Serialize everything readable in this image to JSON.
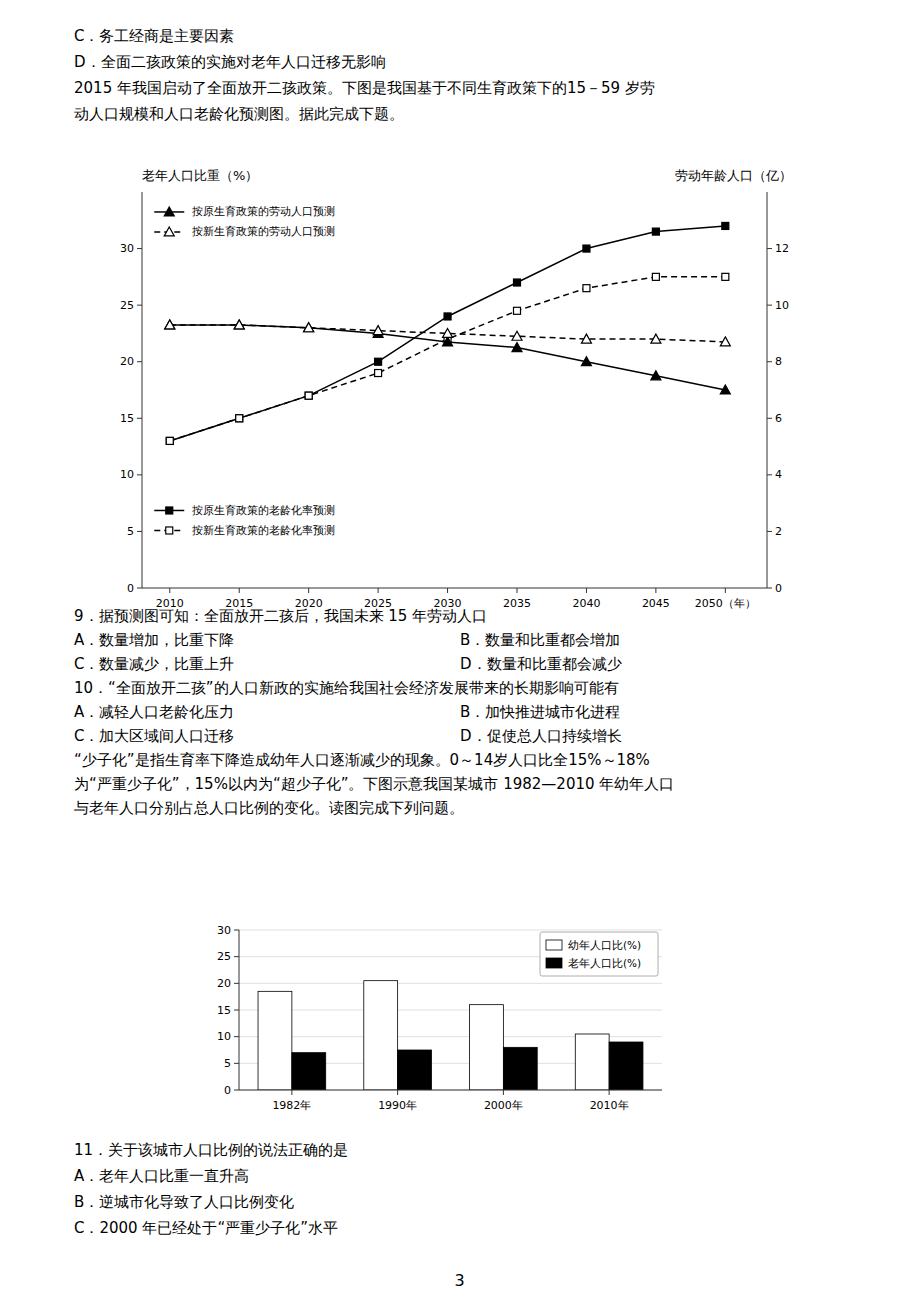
{
  "page_text": [
    [
      [
        "C．务工经商是主要因素"
      ],
      [
        "D．全面二孩政策的实施对老年人口迁移无影响"
      ],
      [
        "2015 年我国启动了全面放开二孩政策。下图是我国基于不同生育政策下的15－59 岁劳"
      ],
      [
        "动人口规模和人口老龄化预测图。据此完成下题。"
      ]
    ],
    [
      [
        "9．据预测图可知：全面放开二孩后，我国未来 15 年劳动人口"
      ],
      [
        "A．数量增加，比重下降",
        "B．数量和比重都会增加"
      ],
      [
        "C．数量减少，比重上升",
        "D．数量和比重都会减少"
      ],
      [
        "10．“全面放开二孩”的人口新政的实施给我国社会经济发展带来的长期影响可能有"
      ],
      [
        "A．减轻人口老龄化压力",
        "B．加快推进城市化进程"
      ],
      [
        "C．加大区域间人口迁移",
        "D．促使总人口持续增长"
      ],
      [
        "“少子化”是指生育率下降造成幼年人口逐渐减少的现象。0～14岁人口比全15%～18%"
      ],
      [
        "为“严重少子化”，15%以内为“超少子化”。下图示意我国某城市 1982—2010 年幼年人口"
      ],
      [
        "与老年人口分别占总人口比例的变化。读图完成下列问题。"
      ]
    ],
    [
      [
        "11．关于该城市人口比例的说法正确的是"
      ],
      [
        "A．老年人口比重一直升高"
      ],
      [
        "B．逆城市化导致了人口比例变化"
      ],
      [
        "C．2000 年已经处于“严重少子化”水平"
      ]
    ]
  ],
  "page_number": "3",
  "chart_data": [
    {
      "type": "line",
      "x": [
        2010,
        2015,
        2020,
        2025,
        2030,
        2035,
        2040,
        2045,
        2050
      ],
      "xlim": [
        2008,
        2053
      ],
      "xticks": [
        2010,
        2015,
        2020,
        2025,
        2030,
        2035,
        2040,
        2045,
        {
          "value": 2050,
          "label": "2050（年）"
        }
      ],
      "ylabel": "老年人口比重（%）",
      "y2label": "劳动年龄人口（亿）",
      "ylim": [
        0,
        35
      ],
      "yticks": [
        0,
        5,
        10,
        15,
        20,
        25,
        30
      ],
      "y2lim": [
        0,
        14
      ],
      "y2ticks": [
        0,
        2,
        4,
        6,
        8,
        10,
        12
      ],
      "grid": false,
      "series": [
        {
          "name": "按原生育政策的老龄化率预测",
          "axis": "y",
          "color": "#000000",
          "marker": "square",
          "line_style": "solid",
          "legend": "lower left",
          "values": [
            13.0,
            15.0,
            17.0,
            20.0,
            24.0,
            27.0,
            30.0,
            31.5,
            32.0
          ]
        },
        {
          "name": "按新生育政策的老龄化率预测",
          "axis": "y",
          "color": "#000000",
          "marker": "square-open",
          "line_style": "dashed",
          "legend": "lower left",
          "values": [
            13.0,
            15.0,
            17.0,
            19.0,
            22.0,
            24.5,
            26.5,
            27.5,
            27.5
          ]
        },
        {
          "name": "按原生育政策的劳动人口预测",
          "axis": "y2",
          "color": "#000000",
          "marker": "triangle",
          "line_style": "solid",
          "legend": "upper left",
          "values": [
            9.3,
            9.3,
            9.2,
            9.0,
            8.7,
            8.5,
            8.0,
            7.5,
            7.0
          ]
        },
        {
          "name": "按新生育政策的劳动人口预测",
          "axis": "y2",
          "color": "#000000",
          "marker": "triangle-open",
          "line_style": "dashed",
          "legend": "upper left",
          "values": [
            9.3,
            9.3,
            9.2,
            9.1,
            9.0,
            8.9,
            8.8,
            8.8,
            8.7
          ]
        }
      ]
    },
    {
      "type": "bar",
      "categories": [
        "1982年",
        "1990年",
        "2000年",
        "2010年"
      ],
      "ylim": [
        0,
        30
      ],
      "yticks": [
        0,
        5,
        10,
        15,
        20,
        25,
        30
      ],
      "grid": true,
      "legend": "upper right",
      "series": [
        {
          "name": "幼年人口比(%)",
          "color": "#ffffff",
          "values": [
            18.5,
            20.5,
            16.0,
            10.5
          ]
        },
        {
          "name": "老年人口比(%)",
          "color": "#000000",
          "values": [
            7.0,
            7.5,
            8.0,
            9.0
          ]
        }
      ]
    }
  ]
}
